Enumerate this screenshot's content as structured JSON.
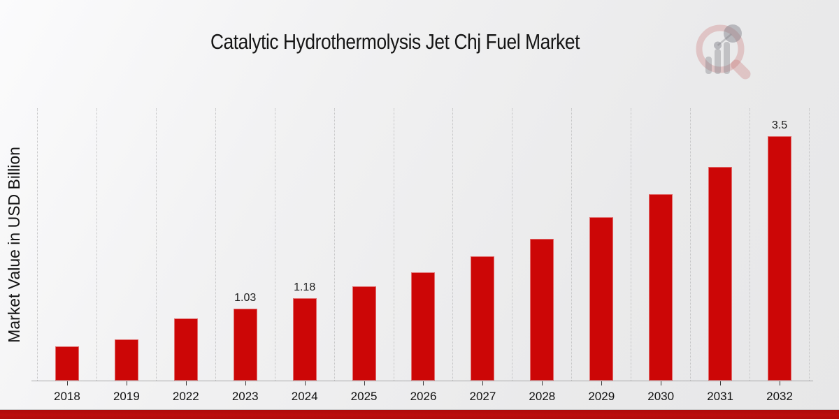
{
  "page": {
    "title": "Catalytic Hydrothermolysis Jet Chj Fuel Market",
    "ylabel": "Market Value in USD Billion"
  },
  "icons": {
    "brand_logo": "magnifier-growth-chart-icon"
  },
  "colors": {
    "bar": "#cc0606",
    "bottom_strip": "#b50c0c",
    "gridline": "#c3c3c4",
    "axis": "#a8a8a9",
    "logo_pink": "rgba(198,110,110,0.30)",
    "logo_gray": "rgba(125,125,133,0.38)"
  },
  "chart_data": {
    "type": "bar",
    "title": "Catalytic Hydrothermolysis Jet Chj Fuel Market",
    "xlabel": "",
    "ylabel": "Market Value in USD Billion",
    "categories": [
      "2018",
      "2019",
      "2022",
      "2023",
      "2024",
      "2025",
      "2026",
      "2027",
      "2028",
      "2029",
      "2030",
      "2031",
      "2032"
    ],
    "values": [
      0.49,
      0.59,
      0.89,
      1.03,
      1.18,
      1.35,
      1.55,
      1.78,
      2.03,
      2.34,
      2.67,
      3.06,
      3.5
    ],
    "bar_labels": {
      "2023": "1.03",
      "2024": "1.18",
      "2032": "3.5"
    },
    "ylim": [
      0,
      3.9
    ],
    "grid": "vertical dotted lines at category boundaries, no horizontal gridlines, no y tick labels",
    "legend": "none",
    "bar_color": "#cc0606"
  }
}
